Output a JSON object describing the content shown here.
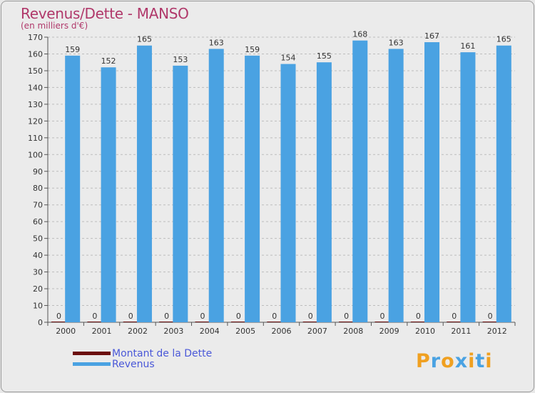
{
  "chart_data": {
    "type": "bar",
    "title": "Revenus/Dette - MANSO",
    "subtitle": "(en milliers d'€)",
    "categories": [
      "2000",
      "2001",
      "2002",
      "2003",
      "2004",
      "2005",
      "2006",
      "2007",
      "2008",
      "2009",
      "2010",
      "2011",
      "2012"
    ],
    "series": [
      {
        "name": "Montant de la Dette",
        "values": [
          0,
          0,
          0,
          0,
          0,
          0,
          0,
          0,
          0,
          0,
          0,
          0,
          0
        ],
        "color": "#6b0f0f"
      },
      {
        "name": "Revenus",
        "values": [
          159,
          152,
          165,
          153,
          163,
          159,
          154,
          155,
          168,
          163,
          167,
          161,
          165
        ],
        "color": "#4aa2e2"
      }
    ],
    "ylim": [
      0,
      170
    ],
    "ytick_step": 10,
    "grid": true,
    "legend": "bottom-left"
  },
  "colors": {
    "title": "#b0386a",
    "grid": "#bdbdbd",
    "axis": "#555555",
    "legend_text": "#4a58d8"
  },
  "logo": {
    "text": "Proxiti",
    "letter_colors": [
      "#f0a020",
      "#4aa2e2",
      "#f0a020",
      "#4aa2e2",
      "#f0a020",
      "#4aa2e2",
      "#f0a020"
    ]
  }
}
